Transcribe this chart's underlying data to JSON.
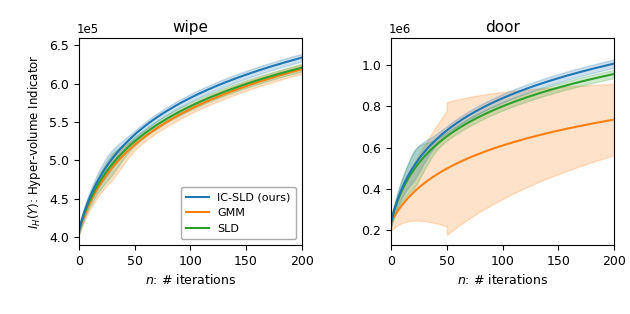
{
  "wipe": {
    "title": "wipe",
    "xlim": [
      0,
      200
    ],
    "ylim": [
      390000.0,
      660000.0
    ],
    "yticks": [
      400000.0,
      450000.0,
      500000.0,
      550000.0,
      600000.0,
      650000.0
    ],
    "ytick_labels": [
      "4.0",
      "4.5",
      "5.0",
      "5.5",
      "6.0",
      "6.5"
    ],
    "yscale_label": "1e5",
    "xticks": [
      0,
      50,
      100,
      150,
      200
    ],
    "xlabel": "n: # iterations",
    "ylabel": "$I_H(Y)$: Hyper-volume Indicator"
  },
  "door": {
    "title": "door",
    "xlim": [
      0,
      200
    ],
    "ylim": [
      130000.0,
      1130000.0
    ],
    "yticks": [
      200000.0,
      400000.0,
      600000.0,
      800000.0,
      1000000.0
    ],
    "ytick_labels": [
      "0.2",
      "0.4",
      "0.6",
      "0.8",
      "1.0"
    ],
    "yscale_label": "1e6",
    "xticks": [
      0,
      50,
      100,
      150,
      200
    ],
    "xlabel": "n: # iterations"
  },
  "legend_labels": [
    "IC-SLD (ours)",
    "GMM",
    "SLD"
  ],
  "legend_colors": [
    "#1f77b4",
    "#ff7f0e",
    "#2ca02c"
  ],
  "wipe_ic_mean_params": [
    408000.0,
    634000.0,
    14.0
  ],
  "wipe_ic_std_lo": 5000,
  "wipe_ic_std_hi": 12000,
  "wipe_gmm_mean_params": [
    408000.0,
    619000.0,
    11.0
  ],
  "wipe_gmm_std_lo": 6000,
  "wipe_gmm_std_hi": 16000,
  "wipe_sld_mean_params": [
    408000.0,
    621000.0,
    13.0
  ],
  "wipe_sld_std_lo": 5000,
  "wipe_sld_std_hi": 14000,
  "door_ic_mean_params": [
    240000.0,
    1005000.0,
    18.0
  ],
  "door_ic_std_lo": 20000.0,
  "door_ic_std_hi": 70000.0,
  "door_gmm_mean_params": [
    240000.0,
    735000.0,
    10.0
  ],
  "door_gmm_std_lo": 40000.0,
  "door_gmm_std_hi": 280000.0,
  "door_sld_mean_params": [
    240000.0,
    955000.0,
    18.0
  ],
  "door_sld_std_lo": 20000.0,
  "door_sld_std_hi": 90000.0
}
